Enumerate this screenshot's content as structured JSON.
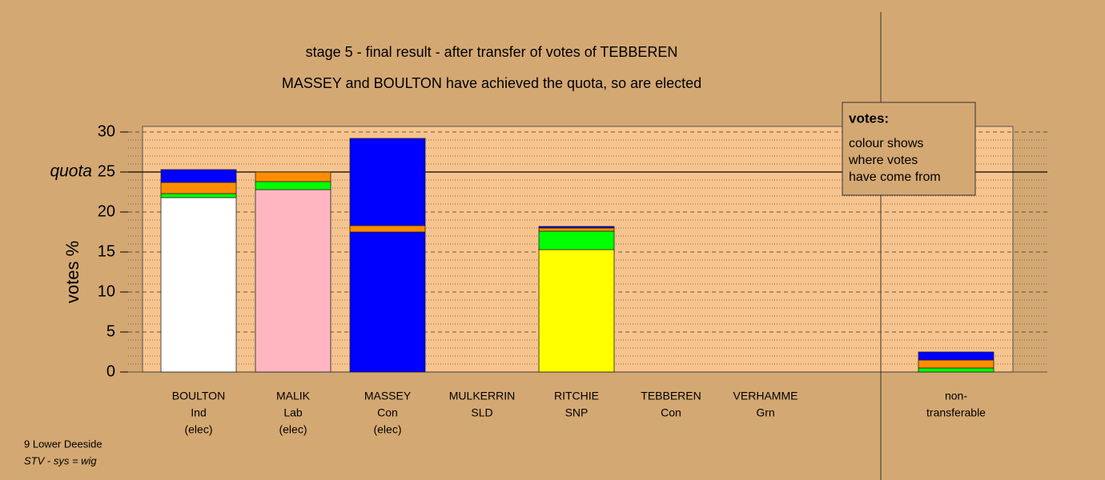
{
  "chart_data": {
    "type": "stacked-bar",
    "title": "stage 5 - final result - after transfer of votes of TEBBEREN",
    "subtitle": "MASSEY and BOULTON have achieved the quota, so are elected",
    "y_label": "votes %",
    "categories": [
      [
        "BOULTON",
        "Ind",
        "(elec)"
      ],
      [
        "MALIK",
        "Lab",
        "(elec)"
      ],
      [
        "MASSEY",
        "Con",
        "(elec)"
      ],
      [
        "MULKERRIN",
        "SLD"
      ],
      [
        "RITCHIE",
        "SNP"
      ],
      [
        "TEBBEREN",
        "Con"
      ],
      [
        "VERHAMME",
        "Grn"
      ],
      [
        "non-",
        "transferable"
      ]
    ],
    "series": [
      {
        "colors": [
          "#ffffff",
          "#ffb6c1",
          "#0000ff",
          "#ff8c00",
          "#ffff00",
          "#0000ff",
          "#00ff00",
          "#ffffff"
        ],
        "values": [
          21.8,
          22.8,
          17.5,
          0,
          15.3,
          0,
          0,
          0
        ]
      },
      {
        "color": "#00ff00",
        "values": [
          0.5,
          1.0,
          0,
          0,
          2.3,
          0,
          0,
          0.5
        ]
      },
      {
        "color": "#ff8c00",
        "values": [
          1.4,
          1.2,
          0.8,
          0,
          0.4,
          0,
          0,
          1.0
        ]
      },
      {
        "color": "#0000ff",
        "values": [
          1.6,
          0,
          10.9,
          0,
          0.2,
          0,
          0,
          1.0
        ]
      }
    ],
    "ylim": [
      0,
      30.7
    ],
    "yticks": [
      0,
      5,
      10,
      15,
      20,
      25,
      30
    ],
    "minor_yticks": [
      1,
      2,
      3,
      4,
      6,
      7,
      8,
      9,
      11,
      12,
      13,
      14,
      16,
      17,
      18,
      19,
      21,
      22,
      23,
      24,
      26,
      27,
      28,
      29
    ],
    "quota": 25,
    "quota_label": "quota",
    "grid": true,
    "legend": {
      "title": "votes:",
      "lines": [
        "colour shows",
        "where votes",
        "have come from"
      ]
    },
    "footer": [
      "9 Lower Deeside",
      "STV - sys = wig"
    ]
  }
}
